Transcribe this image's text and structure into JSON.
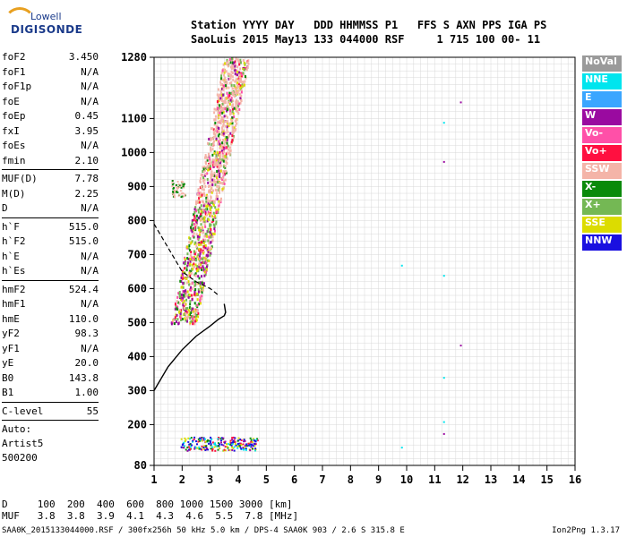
{
  "logo": {
    "top": "Lowell",
    "bottom": "DIGISONDE"
  },
  "header": {
    "line1": "Station YYYY DAY   DDD HHMMSS P1   FFS S AXN PPS IGA PS",
    "line2": "SaoLuis 2015 May13 133 044000 RSF     1 715 100 00- 11"
  },
  "params": [
    [
      {
        "k": "foF2",
        "v": "3.450"
      },
      {
        "k": "foF1",
        "v": "N/A"
      },
      {
        "k": "foF1p",
        "v": "N/A"
      },
      {
        "k": "foE",
        "v": "N/A"
      },
      {
        "k": "foEp",
        "v": "0.45"
      },
      {
        "k": "fxI",
        "v": "3.95"
      },
      {
        "k": "foEs",
        "v": "N/A"
      },
      {
        "k": "fmin",
        "v": "2.10"
      }
    ],
    [
      {
        "k": "MUF(D)",
        "v": "7.78"
      },
      {
        "k": "M(D)",
        "v": "2.25"
      },
      {
        "k": "D",
        "v": "N/A"
      }
    ],
    [
      {
        "k": "h`F",
        "v": "515.0"
      },
      {
        "k": "h`F2",
        "v": "515.0"
      },
      {
        "k": "h`E",
        "v": "N/A"
      },
      {
        "k": "h`Es",
        "v": "N/A"
      }
    ],
    [
      {
        "k": "hmF2",
        "v": "524.4"
      },
      {
        "k": "hmF1",
        "v": "N/A"
      },
      {
        "k": "hmE",
        "v": "110.0"
      },
      {
        "k": "yF2",
        "v": "98.3"
      },
      {
        "k": "yF1",
        "v": "N/A"
      },
      {
        "k": "yE",
        "v": "20.0"
      },
      {
        "k": "B0",
        "v": "143.8"
      },
      {
        "k": "B1",
        "v": "1.00"
      }
    ],
    [
      {
        "k": "C-level",
        "v": "55"
      }
    ]
  ],
  "auto": [
    "Auto:",
    "Artist5",
    "500200"
  ],
  "muf_table": {
    "line1": "D     100  200  400  600  800 1000 1500 3000 [km]",
    "line2": "MUF   3.8  3.8  3.9  4.1  4.3  4.6  5.5  7.8 [MHz]"
  },
  "footer": "SAA0K_2015133044000.RSF / 300fx256h 50 kHz 5.0 km / DPS-4 SAA0K 903 / 2.6 S 315.8 E",
  "version": "Ion2Png 1.3.17",
  "legend": [
    {
      "label": "NoVal",
      "color": "#9a9a9a"
    },
    {
      "label": "NNE",
      "color": "#00e5ee"
    },
    {
      "label": "E",
      "color": "#3aa6ff"
    },
    {
      "label": "W",
      "color": "#9a0aa0"
    },
    {
      "label": "Vo-",
      "color": "#ff50a8"
    },
    {
      "label": "Vo+",
      "color": "#ff1040"
    },
    {
      "label": "SSW",
      "color": "#f4b4a8"
    },
    {
      "label": "X-",
      "color": "#0a8a0a"
    },
    {
      "label": "X+",
      "color": "#74b854"
    },
    {
      "label": "SSE",
      "color": "#dcdc00"
    },
    {
      "label": "NNW",
      "color": "#1a10e0"
    }
  ],
  "chart_data": {
    "type": "scatter",
    "xlim": [
      1,
      16
    ],
    "ylim": [
      80,
      1280
    ],
    "xticks": [
      1,
      2,
      3,
      4,
      5,
      6,
      7,
      8,
      9,
      10,
      11,
      12,
      13,
      14,
      15,
      16
    ],
    "yticks": [
      80,
      200,
      300,
      400,
      500,
      600,
      700,
      800,
      900,
      1000,
      1100,
      1280
    ],
    "grid": true,
    "legend_placement": "right",
    "profile_curve": [
      [
        1.0,
        300
      ],
      [
        1.5,
        370
      ],
      [
        2.0,
        420
      ],
      [
        2.5,
        460
      ],
      [
        3.0,
        490
      ],
      [
        3.3,
        510
      ],
      [
        3.5,
        520
      ],
      [
        3.55,
        530
      ],
      [
        3.5,
        555
      ]
    ],
    "trace_line": [
      [
        1.0,
        790
      ],
      [
        1.5,
        720
      ],
      [
        2.0,
        650
      ],
      [
        2.5,
        620
      ],
      [
        3.0,
        600
      ],
      [
        3.3,
        580
      ]
    ],
    "echo_clusters": [
      {
        "name": "NNE",
        "points": [
          [
            9.8,
            670
          ],
          [
            11.3,
            1090
          ],
          [
            11.3,
            640
          ],
          [
            11.3,
            340
          ],
          [
            11.3,
            210
          ],
          [
            9.8,
            135
          ]
        ]
      },
      {
        "name": "W",
        "points": [
          [
            11.3,
            975
          ],
          [
            11.9,
            1150
          ],
          [
            11.9,
            435
          ],
          [
            11.3,
            175
          ]
        ]
      },
      {
        "name": "NNW",
        "points": [
          [
            2.0,
            145
          ],
          [
            2.5,
            145
          ],
          [
            3.0,
            145
          ],
          [
            3.3,
            145
          ],
          [
            4.5,
            140
          ]
        ]
      }
    ]
  }
}
